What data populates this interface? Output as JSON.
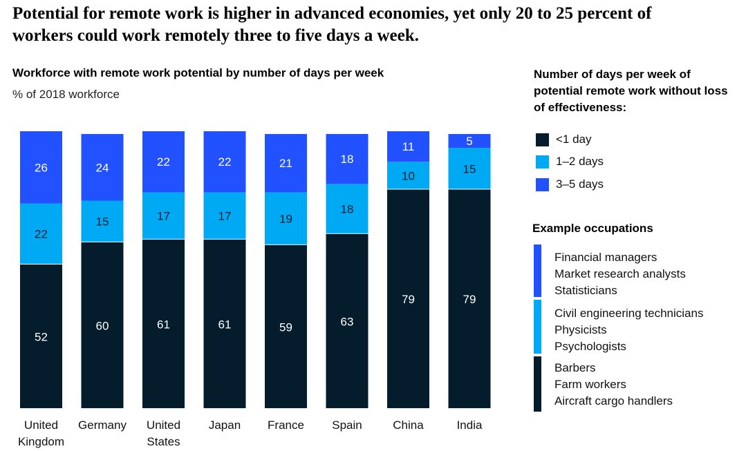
{
  "headline": "Potential for remote work is higher in advanced economies, yet only 20 to 25 percent of workers could work remotely three to five days a week.",
  "colors": {
    "lt1": "#051c2c",
    "d12": "#00a9f4",
    "d35": "#2251ff",
    "label_light": "#ffffff",
    "label_dark": "#051c2c"
  },
  "chart_data": {
    "type": "bar",
    "stacked": true,
    "title": "Workforce with remote work potential by number of days per week",
    "subtitle": "% of 2018 workforce",
    "categories": [
      "United Kingdom",
      "Germany",
      "United States",
      "Japan",
      "France",
      "Spain",
      "China",
      "India"
    ],
    "category_lines": [
      [
        "United",
        "Kingdom"
      ],
      [
        "Germany"
      ],
      [
        "United",
        "States"
      ],
      [
        "Japan"
      ],
      [
        "France"
      ],
      [
        "Spain"
      ],
      [
        "China"
      ],
      [
        "India"
      ]
    ],
    "series": [
      {
        "name": "<1 day",
        "values": [
          52,
          60,
          61,
          61,
          59,
          63,
          79,
          79
        ]
      },
      {
        "name": "1–2 days",
        "values": [
          22,
          15,
          17,
          17,
          19,
          18,
          10,
          15
        ]
      },
      {
        "name": "3–5 days",
        "values": [
          26,
          24,
          22,
          22,
          21,
          18,
          11,
          5
        ]
      }
    ],
    "ylim": [
      0,
      100
    ]
  },
  "legend": {
    "title": "Number of days per week of potential remote work without loss of effectiveness:",
    "items": [
      {
        "label": "<1 day",
        "color": "#051c2c"
      },
      {
        "label": "1–2 days",
        "color": "#00a9f4"
      },
      {
        "label": "3–5 days",
        "color": "#2251ff"
      }
    ]
  },
  "occupations": {
    "title": "Example occupations",
    "groups": [
      {
        "color": "#2251ff",
        "items": [
          "Financial managers",
          "Market research analysts",
          "Statisticians"
        ]
      },
      {
        "color": "#00a9f4",
        "items": [
          "Civil engineering technicians",
          "Physicists",
          "Psychologists"
        ]
      },
      {
        "color": "#051c2c",
        "items": [
          "Barbers",
          "Farm workers",
          "Aircraft cargo handlers"
        ]
      }
    ]
  }
}
